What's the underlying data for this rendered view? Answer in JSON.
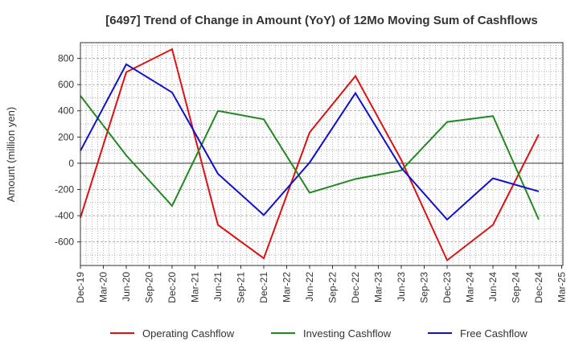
{
  "chart_data": {
    "type": "line",
    "title": "[6497]  Trend of Change in Amount (YoY) of 12Mo Moving Sum of Cashflows",
    "xlabel": "",
    "ylabel": "Amount (million yen)",
    "ylim": [
      -780,
      920
    ],
    "yticks": [
      -600,
      -400,
      -200,
      0,
      200,
      400,
      600,
      800
    ],
    "ytick_labels": [
      "-600",
      "-400",
      "-200",
      "0",
      "200",
      "400",
      "600",
      "800"
    ],
    "categories": [
      "Dec-19",
      "Mar-20",
      "Jun-20",
      "Sep-20",
      "Dec-20",
      "Mar-21",
      "Jun-21",
      "Sep-21",
      "Dec-21",
      "Mar-22",
      "Jun-22",
      "Sep-22",
      "Dec-22",
      "Mar-23",
      "Jun-23",
      "Sep-23",
      "Dec-23",
      "Mar-24",
      "Jun-24",
      "Sep-24",
      "Dec-24",
      "Mar-25"
    ],
    "grid": true,
    "legend_position": "bottom",
    "series": [
      {
        "name": "Operating Cashflow",
        "color": "#dd1111",
        "values": [
          -415,
          null,
          695,
          null,
          870,
          null,
          -470,
          null,
          -725,
          null,
          235,
          null,
          665,
          null,
          25,
          null,
          -740,
          null,
          -470,
          null,
          220,
          null
        ]
      },
      {
        "name": "Investing Cashflow",
        "color": "#228822",
        "values": [
          515,
          null,
          60,
          null,
          -325,
          null,
          400,
          null,
          335,
          null,
          -225,
          null,
          -120,
          null,
          -55,
          null,
          315,
          null,
          360,
          null,
          -430,
          null
        ]
      },
      {
        "name": "Free Cashflow",
        "color": "#1111cc",
        "values": [
          95,
          null,
          755,
          null,
          540,
          null,
          -80,
          null,
          -395,
          null,
          5,
          null,
          535,
          null,
          -35,
          null,
          -430,
          null,
          -115,
          null,
          -215,
          null
        ]
      }
    ]
  }
}
